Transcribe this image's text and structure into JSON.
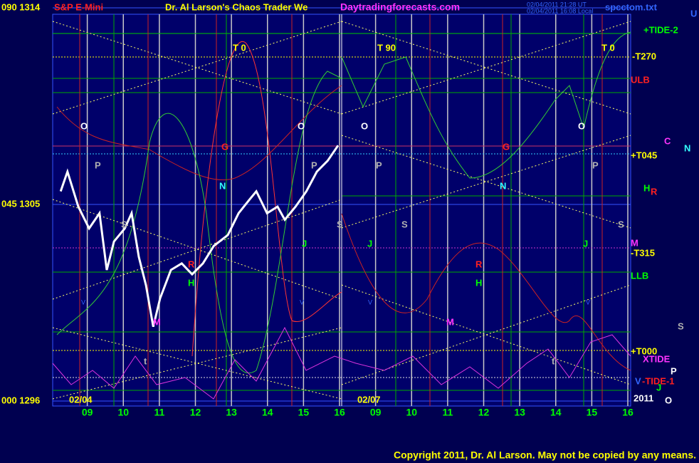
{
  "chart_data": {
    "type": "line",
    "title": "Dr. Al Larson's Chaos Trader We",
    "instrument": "S&P E-Mini",
    "site": "Daytradingforecasts.com",
    "timestamps": [
      "02/04/2011 21:28 UT",
      "02/04/2011 16:08 Local"
    ],
    "file": "spcctom.txt",
    "dates": [
      "02/04",
      "02/07",
      "2011"
    ],
    "x": [
      8.26,
      8.45,
      8.75,
      9.05,
      9.34,
      9.54,
      9.74,
      10.04,
      10.23,
      10.43,
      10.63,
      10.83,
      11.02,
      11.32,
      11.62,
      11.91,
      12.21,
      12.51,
      12.9,
      13.2,
      13.49,
      13.69,
      13.99,
      14.28,
      14.48,
      14.78,
      15.08,
      15.37,
      15.67,
      15.96
    ],
    "series": [
      {
        "name": "S&P E-Mini",
        "color": "#ffffff",
        "values": [
          1305.6,
          1306.5,
          1304.9,
          1303.9,
          1304.6,
          1302.0,
          1303.3,
          1303.9,
          1304.6,
          1302.6,
          1301.3,
          1299.4,
          1300.7,
          1302.0,
          1302.3,
          1301.8,
          1302.3,
          1303.1,
          1303.6,
          1304.6,
          1305.2,
          1305.6,
          1304.6,
          1304.9,
          1304.3,
          1304.9,
          1305.6,
          1306.5,
          1307.0,
          1307.7
        ]
      }
    ],
    "xlim": [
      8,
      24
    ],
    "xticks": [
      {
        "value": 9,
        "label": "09"
      },
      10,
      11,
      12,
      13,
      14,
      15,
      16,
      {
        "value": 17,
        "label": "09"
      },
      {
        "value": 18,
        "label": "10"
      },
      {
        "value": 19,
        "label": "11"
      },
      {
        "value": 20,
        "label": "12"
      },
      {
        "value": 21,
        "label": "13"
      },
      {
        "value": 22,
        "label": "14"
      },
      {
        "value": 23,
        "label": "15"
      },
      {
        "value": 24,
        "label": "16"
      }
    ],
    "ylim": [
      1296,
      1314
    ],
    "yticks": [
      {
        "value": 1296,
        "label": "000  1296"
      },
      {
        "value": 1305,
        "label": "045  1305"
      },
      {
        "value": 1314,
        "label": "090  1314"
      }
    ],
    "grid": true,
    "right_labels": [
      "U",
      "+TIDE-2",
      "-T270",
      "ULB",
      "C",
      "N",
      "+T045",
      "H",
      "R",
      "M",
      "-T315",
      "LLB",
      "S",
      "+T000",
      "XTIDE",
      "P",
      "V",
      "-TIDE-1",
      "J",
      "O"
    ],
    "markers": [
      "T   0",
      "T   90",
      "T   0",
      "O",
      "P",
      "G",
      "N",
      "S",
      "J",
      "R",
      "H",
      "M",
      "t",
      "V"
    ],
    "copyright": "Copyright 2011, Dr. Al Larson. May not be copied by any means."
  }
}
